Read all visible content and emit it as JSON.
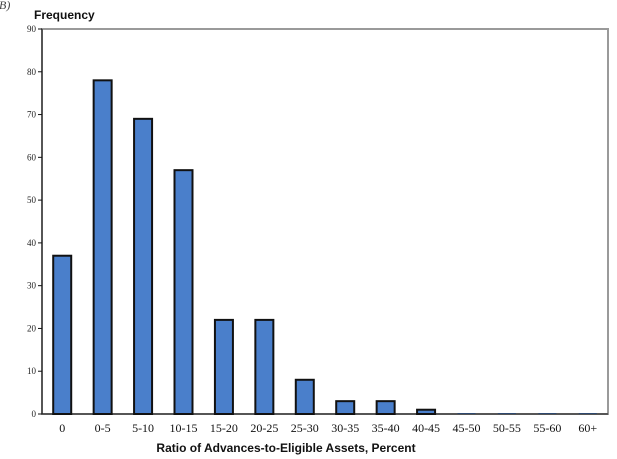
{
  "corner_mark": "B)",
  "chart_data": {
    "type": "bar",
    "title": "",
    "ylabel": "Frequency",
    "xlabel": "Ratio of Advances-to-Eligible Assets, Percent",
    "categories": [
      "0",
      "0-5",
      "5-10",
      "10-15",
      "15-20",
      "20-25",
      "25-30",
      "30-35",
      "35-40",
      "40-45",
      "45-50",
      "50-55",
      "55-60",
      "60+"
    ],
    "values": [
      37,
      78,
      69,
      57,
      22,
      22,
      8,
      3,
      3,
      1,
      0,
      0,
      0,
      0
    ],
    "ylim": [
      0,
      90
    ],
    "yticks": [
      0,
      10,
      20,
      30,
      40,
      50,
      60,
      70,
      80,
      90
    ],
    "grid": false,
    "colors": {
      "bar": "#4a7fcb",
      "bar_border": "#111111",
      "frame": "#9a9a9a",
      "axis": "#111111"
    }
  }
}
